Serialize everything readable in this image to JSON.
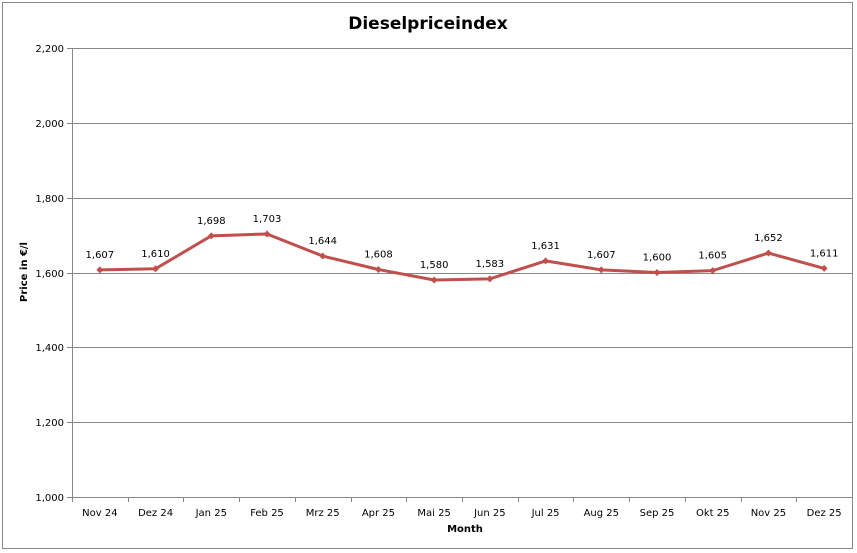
{
  "chart_data": {
    "type": "line",
    "title": "Dieselpriceindex",
    "xlabel": "Month",
    "ylabel": "Price in €/l",
    "categories": [
      "Nov 24",
      "Dez 24",
      "Jan 25",
      "Feb 25",
      "Mrz 25",
      "Apr 25",
      "Mai 25",
      "Jun 25",
      "Jul 25",
      "Aug 25",
      "Sep 25",
      "Okt 25",
      "Nov 25",
      "Dez 25"
    ],
    "series": [
      {
        "name": "Dieselpriceindex",
        "values": [
          1.607,
          1.61,
          1.698,
          1.703,
          1.644,
          1.608,
          1.58,
          1.583,
          1.631,
          1.607,
          1.6,
          1.605,
          1.652,
          1.611
        ],
        "labels": [
          "1,607",
          "1,610",
          "1,698",
          "1,703",
          "1,644",
          "1,608",
          "1,580",
          "1,583",
          "1,631",
          "1,607",
          "1,600",
          "1,605",
          "1,652",
          "1,611"
        ]
      }
    ],
    "ylim": [
      1.0,
      2.2
    ],
    "yticks": [
      1.0,
      1.2,
      1.4,
      1.6,
      1.8,
      2.0,
      2.2
    ],
    "ytick_labels": [
      "1,000",
      "1,200",
      "1,400",
      "1,600",
      "1,800",
      "2,000",
      "2,200"
    ],
    "grid": true,
    "legend": "none",
    "line_color": "#C0504D"
  }
}
